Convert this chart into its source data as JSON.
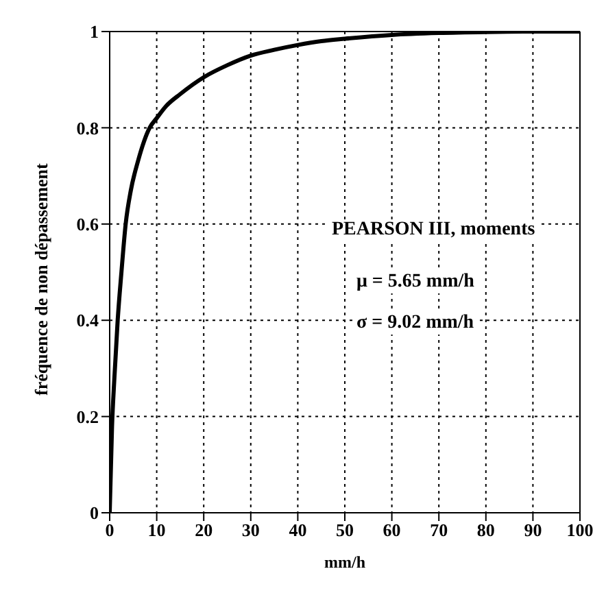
{
  "chart_data": {
    "type": "line",
    "xlabel": "mm/h",
    "ylabel": "fréquence de non dépassement",
    "x": [
      0,
      0.5,
      1,
      1.7,
      2.5,
      3.4,
      4.5,
      6,
      8.5,
      10,
      12,
      15,
      20,
      25,
      30,
      35,
      40,
      45,
      50,
      60,
      70,
      80,
      90,
      100
    ],
    "series": [
      {
        "color": "#000000",
        "values": [
          0,
          0.18,
          0.28,
          0.4,
          0.5,
          0.6,
          0.67,
          0.73,
          0.8,
          0.82,
          0.845,
          0.87,
          0.905,
          0.93,
          0.95,
          0.962,
          0.972,
          0.98,
          0.985,
          0.993,
          0.997,
          0.999,
          1,
          1
        ]
      }
    ],
    "xlim": [
      0,
      100
    ],
    "ylim": [
      0,
      1
    ],
    "xticks": [
      0,
      10,
      20,
      30,
      40,
      50,
      60,
      70,
      80,
      90,
      100
    ],
    "yticks": [
      0,
      {
        "value": 0.2,
        "label": "0.2"
      },
      {
        "value": 0.4,
        "label": "0.4"
      },
      {
        "value": 0.6,
        "label": "0.6"
      },
      {
        "value": 0.8,
        "label": "0.8"
      },
      1
    ],
    "grid": true,
    "marker": "none",
    "line_style": "solid",
    "annotations": [
      "PEARSON III, moments",
      "μ = 5.65 mm/h",
      "σ = 9.02 mm/h"
    ]
  }
}
